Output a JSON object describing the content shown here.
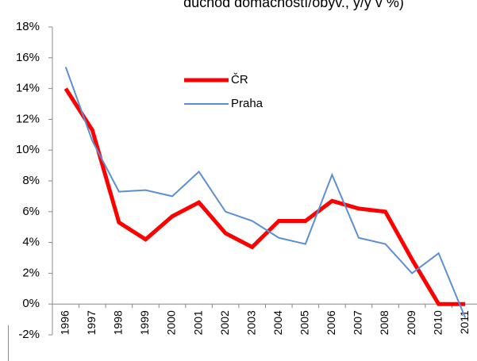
{
  "chart_data": {
    "type": "line",
    "title": "důchod domácností/obyv., y/y v %)",
    "categories": [
      "1996",
      "1997",
      "1998",
      "1999",
      "2000",
      "2001",
      "2002",
      "2003",
      "2004",
      "2005",
      "2006",
      "2007",
      "2008",
      "2009",
      "2010",
      "2011"
    ],
    "series": [
      {
        "name": "ČR",
        "color": "#ff0000",
        "values": [
          14.0,
          11.3,
          5.3,
          4.2,
          5.7,
          6.6,
          4.6,
          3.7,
          5.4,
          5.4,
          6.7,
          6.2,
          6.0,
          2.9,
          0.0,
          0.0
        ]
      },
      {
        "name": "Praha",
        "color": "#5b8fd4",
        "values": [
          15.4,
          10.6,
          7.3,
          7.4,
          7.0,
          8.6,
          6.0,
          5.4,
          4.3,
          3.9,
          8.4,
          4.3,
          3.9,
          2.0,
          3.3,
          -0.9
        ]
      }
    ],
    "ylim": [
      -2,
      18
    ],
    "yticks": [
      {
        "value": -2,
        "label": "-2%"
      },
      {
        "value": 0,
        "label": "0%"
      },
      {
        "value": 2,
        "label": "2%"
      },
      {
        "value": 4,
        "label": "4%"
      },
      {
        "value": 6,
        "label": "6%"
      },
      {
        "value": 8,
        "label": "8%"
      },
      {
        "value": 10,
        "label": "10%"
      },
      {
        "value": 12,
        "label": "12%"
      },
      {
        "value": 14,
        "label": "14%"
      },
      {
        "value": 16,
        "label": "16%"
      },
      {
        "value": 18,
        "label": "18%"
      }
    ],
    "grid": false
  }
}
